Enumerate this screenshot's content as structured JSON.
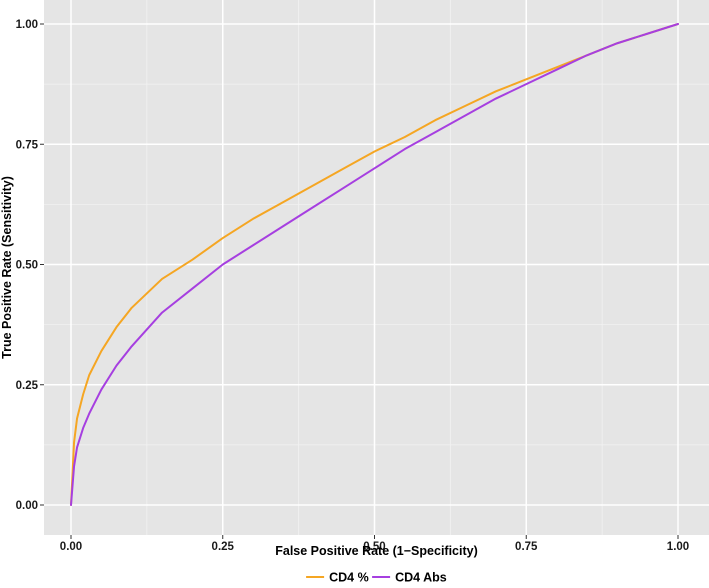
{
  "chart_data": {
    "type": "line",
    "title": "",
    "xlabel": "False Positive Rate (1−Specificity)",
    "ylabel": "True Positive Rate (Sensitivity)",
    "xlim": [
      0,
      1
    ],
    "ylim": [
      0,
      1
    ],
    "x_ticks": [
      "0.00",
      "0.25",
      "0.50",
      "0.75",
      "1.00"
    ],
    "y_ticks": [
      "0.00",
      "0.25",
      "0.50",
      "0.75",
      "1.00"
    ],
    "grid": true,
    "legend_position": "bottom",
    "series": [
      {
        "name": "CD4 %",
        "color": "#f5a623",
        "x": [
          0,
          0.005,
          0.01,
          0.02,
          0.03,
          0.05,
          0.075,
          0.1,
          0.15,
          0.2,
          0.25,
          0.3,
          0.35,
          0.4,
          0.45,
          0.5,
          0.55,
          0.6,
          0.65,
          0.7,
          0.75,
          0.8,
          0.85,
          0.9,
          0.95,
          1.0
        ],
        "y": [
          0,
          0.13,
          0.18,
          0.23,
          0.27,
          0.32,
          0.37,
          0.41,
          0.47,
          0.51,
          0.555,
          0.595,
          0.63,
          0.665,
          0.7,
          0.735,
          0.765,
          0.8,
          0.83,
          0.86,
          0.885,
          0.91,
          0.935,
          0.96,
          0.98,
          1.0
        ]
      },
      {
        "name": "CD4 Abs",
        "color": "#a63fe0",
        "x": [
          0,
          0.005,
          0.01,
          0.02,
          0.03,
          0.05,
          0.075,
          0.1,
          0.15,
          0.2,
          0.25,
          0.3,
          0.35,
          0.4,
          0.45,
          0.5,
          0.55,
          0.6,
          0.65,
          0.7,
          0.75,
          0.8,
          0.85,
          0.9,
          0.95,
          1.0
        ],
        "y": [
          0,
          0.08,
          0.12,
          0.16,
          0.19,
          0.24,
          0.29,
          0.33,
          0.4,
          0.45,
          0.5,
          0.54,
          0.58,
          0.62,
          0.66,
          0.7,
          0.74,
          0.775,
          0.81,
          0.845,
          0.875,
          0.905,
          0.935,
          0.96,
          0.98,
          1.0
        ]
      }
    ]
  }
}
